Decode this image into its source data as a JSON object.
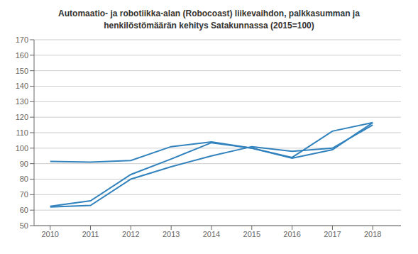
{
  "chart_data": {
    "type": "line",
    "title": "Automaatio- ja robotiikka-alan (Robocoast) liikevaihdon, palkkasumman ja\nhenkilöstömäärän kehitys Satakunnassa (2015=100)",
    "x": [
      2010,
      2011,
      2012,
      2013,
      2014,
      2015,
      2016,
      2017,
      2018
    ],
    "series": [
      {
        "values": [
          91.5,
          91.0,
          92.0,
          101.0,
          104.0,
          100.0,
          94.0,
          111.0,
          116.5
        ]
      },
      {
        "values": [
          62.0,
          63.0,
          80.0,
          88.0,
          95.0,
          101.0,
          98.0,
          100.0,
          115.0
        ]
      },
      {
        "values": [
          62.5,
          66.0,
          83.0,
          93.0,
          103.5,
          100.0,
          93.5,
          99.0,
          116.5
        ]
      }
    ],
    "xlim": [
      2009.6,
      2018.7
    ],
    "xticks": [
      2010,
      2011,
      2012,
      2013,
      2014,
      2015,
      2016,
      2017,
      2018
    ],
    "ylim": [
      50,
      170
    ],
    "yticks": [
      50,
      60,
      70,
      80,
      90,
      100,
      110,
      120,
      130,
      140,
      150,
      160,
      170
    ],
    "grid": true
  }
}
